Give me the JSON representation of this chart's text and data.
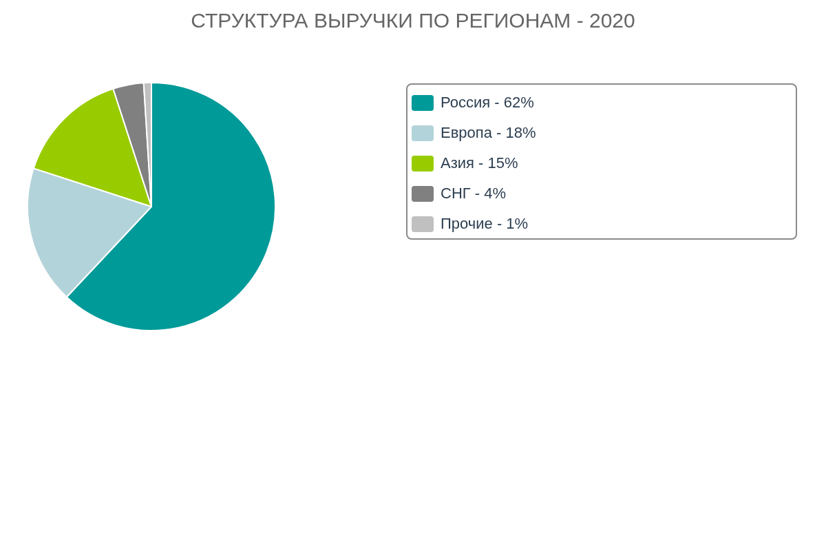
{
  "chart_data": {
    "type": "pie",
    "title": "СТРУКТУРА ВЫРУЧКИ ПО РЕГИОНАМ - 2020",
    "categories": [
      "Россия - 62%",
      "Европа - 18%",
      "Азия - 15%",
      "СНГ - 4%",
      "Прочие - 1%"
    ],
    "values": [
      62,
      18,
      15,
      4,
      1
    ],
    "colors": [
      "#009a99",
      "#b3d3da",
      "#99cc00",
      "#808080",
      "#c0c0c0"
    ],
    "legend": "top right"
  }
}
